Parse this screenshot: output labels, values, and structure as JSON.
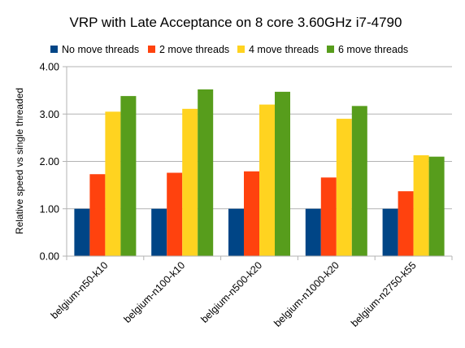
{
  "chart_data": {
    "type": "bar",
    "title": "VRP with Late Acceptance on 8 core 3.60GHz i7-4790",
    "ylabel": "Relative speed vs single threaded",
    "xlabel": "",
    "ylim": [
      0,
      4
    ],
    "yticks": [
      "0.00",
      "1.00",
      "2.00",
      "3.00",
      "4.00"
    ],
    "grid": true,
    "legend_position": "top",
    "categories": [
      "belgium-n50-k10",
      "belgium-n100-k10",
      "belgium-n500-k20",
      "belgium-n1000-k20",
      "belgium-n2750-k55"
    ],
    "series": [
      {
        "name": "No move threads",
        "color": "#004586",
        "values": [
          1.0,
          1.0,
          1.0,
          1.0,
          1.0
        ]
      },
      {
        "name": "2 move threads",
        "color": "#ff420e",
        "values": [
          1.73,
          1.76,
          1.79,
          1.66,
          1.37
        ]
      },
      {
        "name": "4 move threads",
        "color": "#ffd320",
        "values": [
          3.05,
          3.11,
          3.2,
          2.9,
          2.13
        ]
      },
      {
        "name": "6 move threads",
        "color": "#579d1c",
        "values": [
          3.38,
          3.52,
          3.47,
          3.17,
          2.1
        ]
      }
    ]
  }
}
